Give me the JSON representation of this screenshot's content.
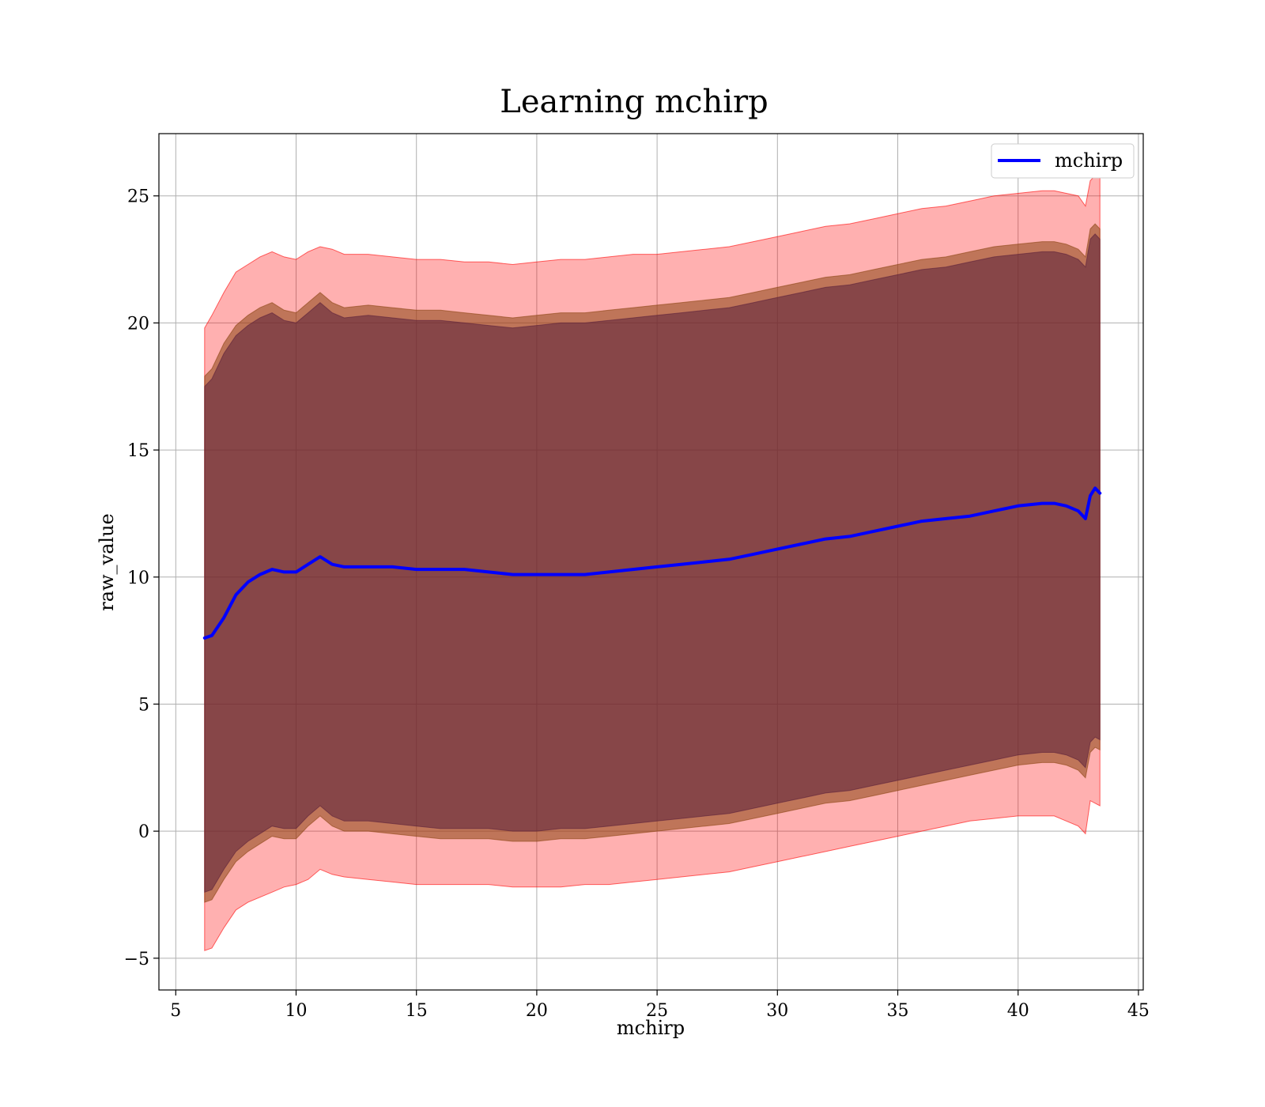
{
  "chart_data": {
    "type": "area",
    "title": "Learning mchirp",
    "xlabel": "mchirp",
    "ylabel": "raw_value",
    "xlim": [
      4.3,
      45.2
    ],
    "ylim": [
      -6.25,
      27.45
    ],
    "grid": true,
    "legend": {
      "placement": "top-right",
      "entries": [
        "mchirp"
      ]
    },
    "xticks": [
      5,
      10,
      15,
      20,
      25,
      30,
      35,
      40,
      45
    ],
    "xtick_labels": [
      "5",
      "10",
      "15",
      "20",
      "25",
      "30",
      "35",
      "40",
      "45"
    ],
    "yticks": [
      -5,
      0,
      5,
      10,
      15,
      20,
      25
    ],
    "ytick_labels": [
      "−5",
      "0",
      "5",
      "10",
      "15",
      "20",
      "25"
    ],
    "x": [
      6.2,
      6.5,
      7.0,
      7.5,
      8.0,
      8.5,
      9.0,
      9.5,
      10.0,
      10.5,
      11.0,
      11.5,
      12.0,
      13.0,
      14.0,
      15.0,
      16.0,
      17.0,
      18.0,
      19.0,
      20.0,
      21.0,
      22.0,
      23.0,
      24.0,
      25.0,
      26.0,
      27.0,
      28.0,
      29.0,
      30.0,
      31.0,
      32.0,
      33.0,
      34.0,
      35.0,
      36.0,
      37.0,
      38.0,
      39.0,
      40.0,
      41.0,
      41.5,
      42.0,
      42.5,
      42.8,
      43.0,
      43.2,
      43.4
    ],
    "series": [
      {
        "name": "mchirp",
        "color": "#0000ff",
        "values": [
          7.6,
          7.7,
          8.4,
          9.3,
          9.8,
          10.1,
          10.3,
          10.2,
          10.2,
          10.5,
          10.8,
          10.5,
          10.4,
          10.4,
          10.4,
          10.3,
          10.3,
          10.3,
          10.2,
          10.1,
          10.1,
          10.1,
          10.1,
          10.2,
          10.3,
          10.4,
          10.5,
          10.6,
          10.7,
          10.9,
          11.1,
          11.3,
          11.5,
          11.6,
          11.8,
          12.0,
          12.2,
          12.3,
          12.4,
          12.6,
          12.8,
          12.9,
          12.9,
          12.8,
          12.6,
          12.3,
          13.2,
          13.5,
          13.3
        ]
      }
    ],
    "bands": [
      {
        "color": "#ff0000",
        "opacity": 0.31,
        "upper": [
          19.8,
          20.3,
          21.2,
          22.0,
          22.3,
          22.6,
          22.8,
          22.6,
          22.5,
          22.8,
          23.0,
          22.9,
          22.7,
          22.7,
          22.6,
          22.5,
          22.5,
          22.4,
          22.4,
          22.3,
          22.4,
          22.5,
          22.5,
          22.6,
          22.7,
          22.7,
          22.8,
          22.9,
          23.0,
          23.2,
          23.4,
          23.6,
          23.8,
          23.9,
          24.1,
          24.3,
          24.5,
          24.6,
          24.8,
          25.0,
          25.1,
          25.2,
          25.2,
          25.1,
          25.0,
          24.6,
          25.6,
          25.8,
          25.7
        ],
        "lower": [
          -4.7,
          -4.6,
          -3.8,
          -3.1,
          -2.8,
          -2.6,
          -2.4,
          -2.2,
          -2.1,
          -1.9,
          -1.5,
          -1.7,
          -1.8,
          -1.9,
          -2.0,
          -2.1,
          -2.1,
          -2.1,
          -2.1,
          -2.2,
          -2.2,
          -2.2,
          -2.1,
          -2.1,
          -2.0,
          -1.9,
          -1.8,
          -1.7,
          -1.6,
          -1.4,
          -1.2,
          -1.0,
          -0.8,
          -0.6,
          -0.4,
          -0.2,
          0.0,
          0.2,
          0.4,
          0.5,
          0.6,
          0.6,
          0.6,
          0.4,
          0.2,
          -0.1,
          1.2,
          1.1,
          1.0
        ]
      },
      {
        "color": "#8b4513",
        "opacity": 0.55,
        "upper": [
          17.9,
          18.2,
          19.2,
          19.9,
          20.3,
          20.6,
          20.8,
          20.5,
          20.4,
          20.8,
          21.2,
          20.8,
          20.6,
          20.7,
          20.6,
          20.5,
          20.5,
          20.4,
          20.3,
          20.2,
          20.3,
          20.4,
          20.4,
          20.5,
          20.6,
          20.7,
          20.8,
          20.9,
          21.0,
          21.2,
          21.4,
          21.6,
          21.8,
          21.9,
          22.1,
          22.3,
          22.5,
          22.6,
          22.8,
          23.0,
          23.1,
          23.2,
          23.2,
          23.1,
          22.9,
          22.6,
          23.7,
          23.9,
          23.7
        ],
        "lower": [
          -2.8,
          -2.7,
          -1.9,
          -1.2,
          -0.8,
          -0.5,
          -0.2,
          -0.3,
          -0.3,
          0.2,
          0.6,
          0.2,
          0.0,
          0.0,
          -0.1,
          -0.2,
          -0.3,
          -0.3,
          -0.3,
          -0.4,
          -0.4,
          -0.3,
          -0.3,
          -0.2,
          -0.1,
          0.0,
          0.1,
          0.2,
          0.3,
          0.5,
          0.7,
          0.9,
          1.1,
          1.2,
          1.4,
          1.6,
          1.8,
          2.0,
          2.2,
          2.4,
          2.6,
          2.7,
          2.7,
          2.6,
          2.4,
          2.1,
          3.1,
          3.3,
          3.2
        ]
      },
      {
        "color": "#5a1f3a",
        "opacity": 0.55,
        "upper": [
          17.5,
          17.8,
          18.8,
          19.5,
          19.9,
          20.2,
          20.4,
          20.1,
          20.0,
          20.4,
          20.8,
          20.4,
          20.2,
          20.3,
          20.2,
          20.1,
          20.1,
          20.0,
          19.9,
          19.8,
          19.9,
          20.0,
          20.0,
          20.1,
          20.2,
          20.3,
          20.4,
          20.5,
          20.6,
          20.8,
          21.0,
          21.2,
          21.4,
          21.5,
          21.7,
          21.9,
          22.1,
          22.2,
          22.4,
          22.6,
          22.7,
          22.8,
          22.8,
          22.7,
          22.5,
          22.2,
          23.3,
          23.5,
          23.3
        ],
        "lower": [
          -2.4,
          -2.3,
          -1.5,
          -0.8,
          -0.4,
          -0.1,
          0.2,
          0.1,
          0.1,
          0.6,
          1.0,
          0.6,
          0.4,
          0.4,
          0.3,
          0.2,
          0.1,
          0.1,
          0.1,
          0.0,
          0.0,
          0.1,
          0.1,
          0.2,
          0.3,
          0.4,
          0.5,
          0.6,
          0.7,
          0.9,
          1.1,
          1.3,
          1.5,
          1.6,
          1.8,
          2.0,
          2.2,
          2.4,
          2.6,
          2.8,
          3.0,
          3.1,
          3.1,
          3.0,
          2.8,
          2.5,
          3.5,
          3.7,
          3.6
        ]
      }
    ]
  }
}
